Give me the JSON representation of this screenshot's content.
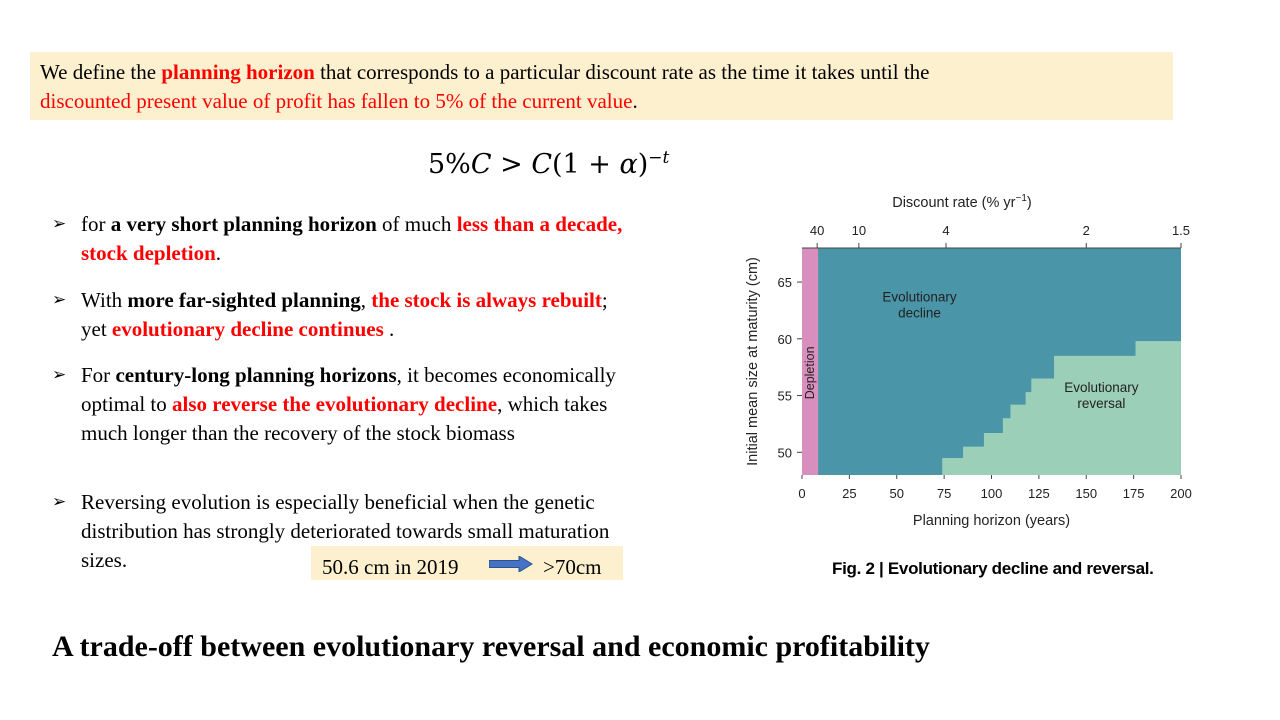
{
  "definition": {
    "part1": "We define the ",
    "part2": "planning horizon",
    "part3": " that corresponds to a particular discount rate as the time it takes until the",
    "part4": "discounted present value of profit has fallen to 5% of the current value",
    "part5": "."
  },
  "formula": {
    "lhs": "5%",
    "c1": "C",
    "gt": " > ",
    "c2": "C",
    "open": "(1 + ",
    "alpha": "α",
    "close": ")",
    "exponent": "−t"
  },
  "bullets": [
    {
      "s1": "for ",
      "s2": "a very short planning horizon",
      "s3": " of much ",
      "s4": "less than a decade, stock depletion",
      "s5": "."
    },
    {
      "s1": "With ",
      "s2": "more far-sighted planning",
      "s3": ", ",
      "s4": "the stock is always rebuilt",
      "s5": "; yet ",
      "s6": "evolutionary decline continues",
      "s7": " ."
    },
    {
      "s1": "For ",
      "s2": "century-long planning horizons",
      "s3": ", it becomes economically optimal to ",
      "s4": "also reverse the evolutionary decline",
      "s5": ", which takes much longer than the recovery of the stock biomass"
    },
    {
      "s1": "Reversing evolution is especially beneficial when the genetic distribution has strongly deteriorated towards small maturation sizes."
    }
  ],
  "highlight": {
    "from": "50.6 cm in 2019",
    "to": ">70cm"
  },
  "bottom_title": "A trade-off between evolutionary reversal and economic profitability",
  "figure_caption": "Fig. 2 | Evolutionary decline and reversal.",
  "colors": {
    "decline": "#4a96a8",
    "reversal": "#9ccfb7",
    "depletion": "#d98fbd",
    "text_red": "#ff0000",
    "box_bg": "#fdf0cf"
  },
  "chart_data": {
    "type": "heatmap",
    "xlabel": "Planning horizon (years)",
    "ylabel": "Initial mean size at maturity (cm)",
    "top_label": "Discount rate (% yr",
    "top_label_sup": "−1",
    "top_label_end": ")",
    "xlim": [
      0,
      200
    ],
    "ylim": [
      48,
      68
    ],
    "x_ticks": [
      "0",
      "25",
      "50",
      "75",
      "100",
      "125",
      "150",
      "175",
      "200"
    ],
    "y_ticks": [
      "50",
      "55",
      "60",
      "65"
    ],
    "top_ticks": [
      {
        "label": "40",
        "horizon": 8
      },
      {
        "label": "10",
        "horizon": 30
      },
      {
        "label": "4",
        "horizon": 76
      },
      {
        "label": "2",
        "horizon": 150
      },
      {
        "label": "1.5",
        "horizon": 200
      }
    ],
    "regions": [
      {
        "name": "Depletion",
        "label": "Depletion",
        "x_range": [
          0,
          8.5
        ]
      },
      {
        "name": "Evolutionary decline",
        "label_lines": [
          "Evolutionary",
          "decline"
        ],
        "label_at": [
          62,
          63.3
        ]
      },
      {
        "name": "Evolutionary reversal",
        "label_lines": [
          "Evolutionary",
          "reversal"
        ],
        "label_at": [
          158,
          55.3
        ]
      }
    ],
    "reversal_boundary": [
      {
        "x": 74,
        "y": 48
      },
      {
        "x": 74,
        "y": 49.5
      },
      {
        "x": 85,
        "y": 49.5
      },
      {
        "x": 85,
        "y": 50.5
      },
      {
        "x": 96,
        "y": 50.5
      },
      {
        "x": 96,
        "y": 51.7
      },
      {
        "x": 106,
        "y": 51.7
      },
      {
        "x": 106,
        "y": 53
      },
      {
        "x": 110,
        "y": 53
      },
      {
        "x": 110,
        "y": 54.2
      },
      {
        "x": 118,
        "y": 54.2
      },
      {
        "x": 118,
        "y": 55.3
      },
      {
        "x": 121,
        "y": 55.3
      },
      {
        "x": 121,
        "y": 56.5
      },
      {
        "x": 133,
        "y": 56.5
      },
      {
        "x": 133,
        "y": 58.5
      },
      {
        "x": 176,
        "y": 58.5
      },
      {
        "x": 176,
        "y": 59.8
      },
      {
        "x": 200,
        "y": 59.8
      }
    ]
  }
}
